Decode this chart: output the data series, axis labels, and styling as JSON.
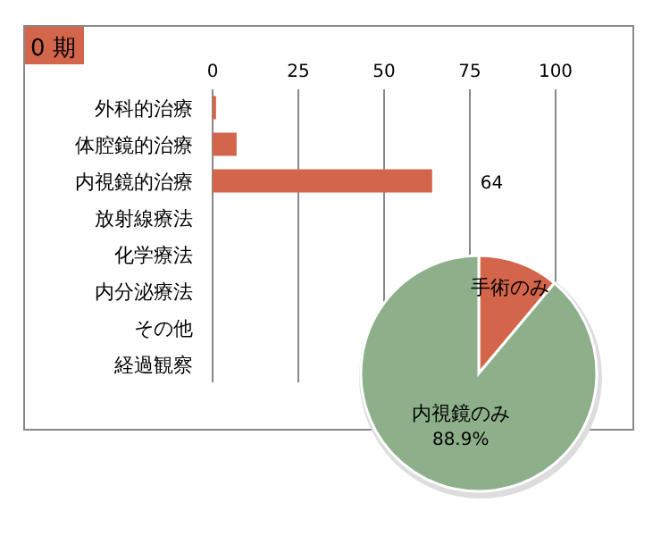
{
  "chart_data": [
    {
      "type": "bar",
      "orientation": "horizontal",
      "title": "0 期",
      "categories": [
        "外科的治療",
        "体腔鏡的治療",
        "内視鏡的治療",
        "放射線療法",
        "化学療法",
        "内分泌療法",
        "その他",
        "経過観察"
      ],
      "values": [
        1,
        7,
        64,
        0,
        0,
        0,
        0,
        0
      ],
      "value_labels": [
        null,
        null,
        "64",
        null,
        null,
        null,
        null,
        null
      ],
      "color": "#d2654a",
      "xlim": [
        0,
        100
      ],
      "xticks": [
        0,
        25,
        50,
        75,
        100
      ],
      "grid": "x"
    },
    {
      "type": "pie",
      "categories": [
        "手術のみ",
        "内視鏡のみ"
      ],
      "values": [
        11.1,
        88.9
      ],
      "colors": [
        "#d2654a",
        "#8db08b"
      ],
      "value_labels": [
        null,
        "88.9%"
      ]
    }
  ]
}
